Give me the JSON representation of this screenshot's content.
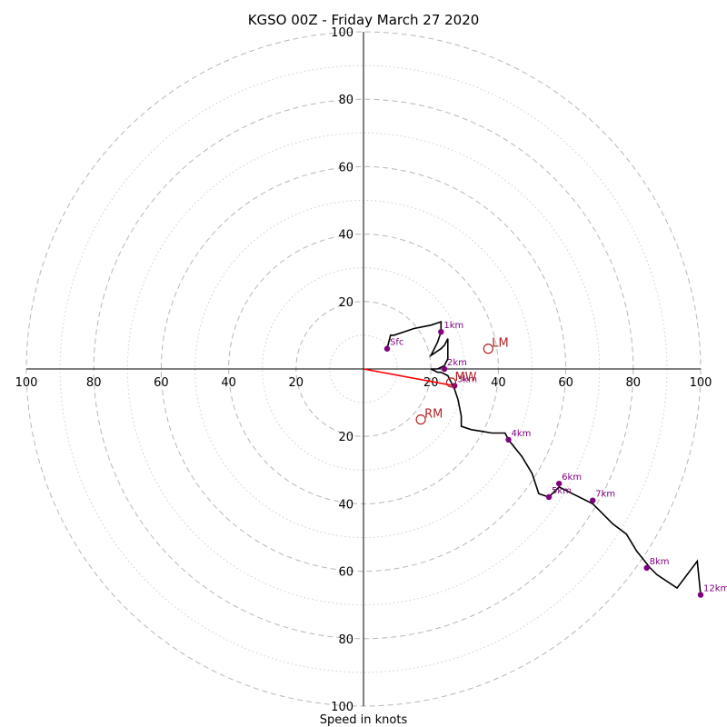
{
  "chart_data": {
    "type": "line",
    "title": "KGSO 00Z - Friday March 27 2020",
    "xlabel": "Speed in knots",
    "ylabel": "",
    "xlim": [
      -100,
      100
    ],
    "ylim": [
      -100,
      100
    ],
    "grid": true,
    "ring_major": [
      20,
      40,
      60,
      80,
      100
    ],
    "ring_minor": [
      10,
      30,
      50,
      70,
      90
    ],
    "ticks": {
      "x_left": [
        "100",
        "80",
        "60",
        "40",
        "20"
      ],
      "x_right": [
        "20",
        "40",
        "60",
        "80",
        "100"
      ],
      "y_up": [
        "20",
        "40",
        "60",
        "80",
        "100"
      ],
      "y_down": [
        "20",
        "40",
        "60",
        "80",
        "100"
      ]
    },
    "hodograph": {
      "u": [
        7,
        8,
        9,
        12,
        15,
        20,
        23,
        23,
        22,
        20,
        23,
        24,
        25,
        25,
        24,
        22,
        20,
        22,
        23,
        25,
        26,
        27,
        28,
        29,
        29,
        32,
        35,
        38,
        42,
        43,
        47,
        50,
        52,
        55,
        58,
        62,
        68,
        70,
        74,
        78,
        81,
        85,
        87,
        93,
        99,
        100
      ],
      "v": [
        6,
        10,
        10,
        11,
        12,
        13,
        14,
        11,
        8,
        4,
        6,
        7,
        9,
        3,
        1,
        0,
        0,
        -1,
        -1,
        -2,
        -4,
        -6,
        -9,
        -14,
        -17,
        -18,
        -18.5,
        -19,
        -19,
        -21,
        -26,
        -31,
        -37,
        -38,
        -35,
        -37,
        -40,
        -42,
        -46,
        -49,
        -54,
        -59,
        -61,
        -65,
        -57,
        -67
      ]
    },
    "height_markers": [
      {
        "label": "Sfc",
        "u": 7,
        "v": 6
      },
      {
        "label": "1km",
        "u": 23,
        "v": 11
      },
      {
        "label": "2km",
        "u": 24,
        "v": 0
      },
      {
        "label": "3km",
        "u": 27,
        "v": -5
      },
      {
        "label": "4km",
        "u": 43,
        "v": -21
      },
      {
        "label": "5km",
        "u": 55,
        "v": -38
      },
      {
        "label": "6km",
        "u": 58,
        "v": -34
      },
      {
        "label": "7km",
        "u": 68,
        "v": -39
      },
      {
        "label": "8km",
        "u": 84,
        "v": -59
      },
      {
        "label": "12km",
        "u": 100,
        "v": -67
      }
    ],
    "storm_motion": [
      {
        "label": "LM",
        "u": 37,
        "v": 6
      },
      {
        "label": "RM",
        "u": 17,
        "v": -15
      },
      {
        "label": "MW",
        "u": 26,
        "v": -4
      }
    ],
    "shear_vector": {
      "u0": 0,
      "v0": 0,
      "u1": 27,
      "v1": -5
    },
    "colors": {
      "hodograph": "#000000",
      "height_marker": "#800080",
      "storm_motion": "#b22222",
      "shear_vector": "#ff0000"
    }
  }
}
